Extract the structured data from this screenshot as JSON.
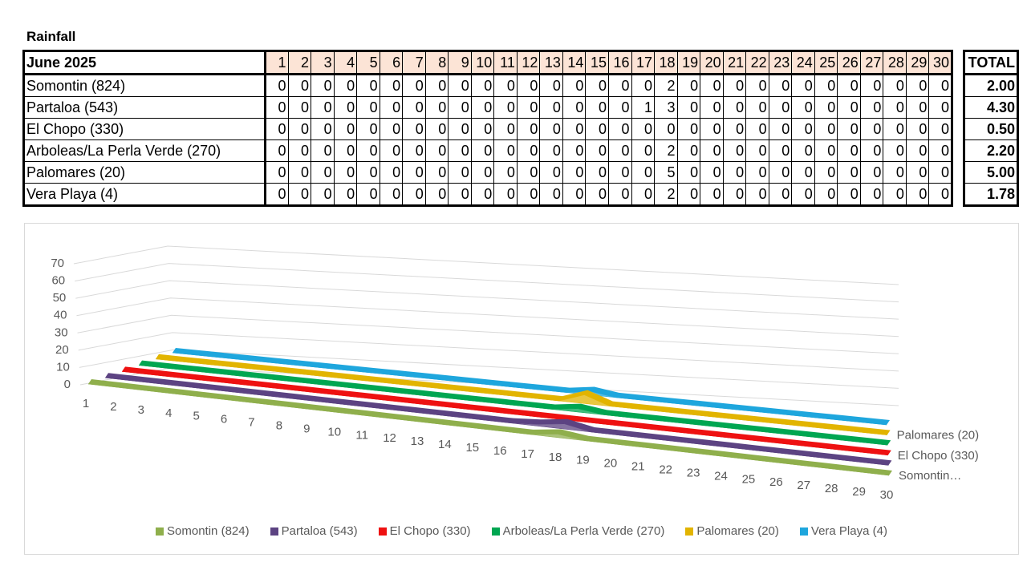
{
  "title": "Rainfall",
  "table": {
    "corner": "June 2025",
    "total_header": "TOTAL",
    "rows": [
      {
        "name": "Somontin (824)",
        "values": [
          0,
          0,
          0,
          0,
          0,
          0,
          0,
          0,
          0,
          0,
          0,
          0,
          0,
          0,
          0,
          0,
          0,
          2,
          0,
          0,
          0,
          0,
          0,
          0,
          0,
          0,
          0,
          0,
          0,
          0
        ],
        "total": "2.00"
      },
      {
        "name": "Partaloa (543)",
        "values": [
          0,
          0,
          0,
          0,
          0,
          0,
          0,
          0,
          0,
          0,
          0,
          0,
          0,
          0,
          0,
          0,
          1,
          3,
          0,
          0,
          0,
          0,
          0,
          0,
          0,
          0,
          0,
          0,
          0,
          0
        ],
        "total": "4.30"
      },
      {
        "name": "El Chopo (330)",
        "values": [
          0,
          0,
          0,
          0,
          0,
          0,
          0,
          0,
          0,
          0,
          0,
          0,
          0,
          0,
          0,
          0,
          0,
          0,
          0,
          0,
          0,
          0,
          0,
          0,
          0,
          0,
          0,
          0,
          0,
          0
        ],
        "total": "0.50"
      },
      {
        "name": "Arboleas/La Perla Verde (270)",
        "values": [
          0,
          0,
          0,
          0,
          0,
          0,
          0,
          0,
          0,
          0,
          0,
          0,
          0,
          0,
          0,
          0,
          0,
          2,
          0,
          0,
          0,
          0,
          0,
          0,
          0,
          0,
          0,
          0,
          0,
          0
        ],
        "total": "2.20"
      },
      {
        "name": "Palomares (20)",
        "values": [
          0,
          0,
          0,
          0,
          0,
          0,
          0,
          0,
          0,
          0,
          0,
          0,
          0,
          0,
          0,
          0,
          0,
          5,
          0,
          0,
          0,
          0,
          0,
          0,
          0,
          0,
          0,
          0,
          0,
          0
        ],
        "total": "5.00"
      },
      {
        "name": "Vera Playa (4)",
        "values": [
          0,
          0,
          0,
          0,
          0,
          0,
          0,
          0,
          0,
          0,
          0,
          0,
          0,
          0,
          0,
          0,
          0,
          2,
          0,
          0,
          0,
          0,
          0,
          0,
          0,
          0,
          0,
          0,
          0,
          0
        ],
        "total": "1.78"
      }
    ]
  },
  "chart_data": {
    "type": "area3d",
    "categories": [
      "1",
      "2",
      "3",
      "4",
      "5",
      "6",
      "7",
      "8",
      "9",
      "10",
      "11",
      "12",
      "13",
      "14",
      "15",
      "16",
      "17",
      "18",
      "19",
      "20",
      "21",
      "22",
      "23",
      "24",
      "25",
      "26",
      "27",
      "28",
      "29",
      "30"
    ],
    "series": [
      {
        "name": "Somontin (824)",
        "color": "#8faf4c",
        "values": [
          0,
          0,
          0,
          0,
          0,
          0,
          0,
          0,
          0,
          0,
          0,
          0,
          0,
          0,
          0,
          0,
          0,
          2,
          0,
          0,
          0,
          0,
          0,
          0,
          0,
          0,
          0,
          0,
          0,
          0
        ]
      },
      {
        "name": "Partaloa (543)",
        "color": "#5c4382",
        "values": [
          0,
          0,
          0,
          0,
          0,
          0,
          0,
          0,
          0,
          0,
          0,
          0,
          0,
          0,
          0,
          0,
          1,
          3,
          0,
          0,
          0,
          0,
          0,
          0,
          0,
          0,
          0,
          0,
          0,
          0
        ]
      },
      {
        "name": "El Chopo (330)",
        "color": "#ee1111",
        "values": [
          0,
          0,
          0,
          0,
          0,
          0,
          0,
          0,
          0,
          0,
          0,
          0,
          0,
          0,
          0,
          0,
          0,
          0,
          0,
          0,
          0,
          0,
          0,
          0,
          0,
          0,
          0,
          0,
          0,
          0
        ]
      },
      {
        "name": "Arboleas/La Perla Verde (270)",
        "color": "#00a651",
        "values": [
          0,
          0,
          0,
          0,
          0,
          0,
          0,
          0,
          0,
          0,
          0,
          0,
          0,
          0,
          0,
          0,
          0,
          2,
          0,
          0,
          0,
          0,
          0,
          0,
          0,
          0,
          0,
          0,
          0,
          0
        ]
      },
      {
        "name": "Palomares (20)",
        "color": "#e2b400",
        "values": [
          0,
          0,
          0,
          0,
          0,
          0,
          0,
          0,
          0,
          0,
          0,
          0,
          0,
          0,
          0,
          0,
          0,
          5,
          0,
          0,
          0,
          0,
          0,
          0,
          0,
          0,
          0,
          0,
          0,
          0
        ]
      },
      {
        "name": "Vera Playa (4)",
        "color": "#1ea6dd",
        "values": [
          0,
          0,
          0,
          0,
          0,
          0,
          0,
          0,
          0,
          0,
          0,
          0,
          0,
          0,
          0,
          0,
          0,
          2,
          0,
          0,
          0,
          0,
          0,
          0,
          0,
          0,
          0,
          0,
          0,
          0
        ]
      }
    ],
    "depth_labels": [
      "Somontin…",
      "El Chopo (330)",
      "Palomares (20)"
    ],
    "ylim": [
      0,
      70
    ],
    "yticks": [
      0,
      10,
      20,
      30,
      40,
      50,
      60,
      70
    ],
    "grid": true
  }
}
